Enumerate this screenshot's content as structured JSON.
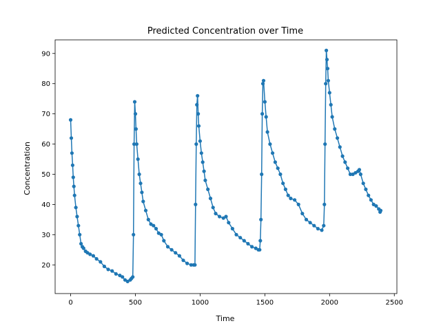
{
  "chart_data": {
    "type": "line",
    "title": "Predicted Concentration over Time",
    "xlabel": "Time",
    "ylabel": "Concentration",
    "xlim": [
      -120,
      2520
    ],
    "ylim": [
      10.5,
      94.5
    ],
    "xticks": [
      0,
      500,
      1000,
      1500,
      2000,
      2500
    ],
    "yticks": [
      20,
      30,
      40,
      50,
      60,
      70,
      80,
      90
    ],
    "grid": false,
    "legend": "none",
    "color": "#1f77b4",
    "marker": "circle",
    "series": [
      {
        "x": [
          0,
          5,
          10,
          15,
          20,
          25,
          30,
          40,
          50,
          60,
          70,
          80,
          90,
          100,
          115,
          130,
          150,
          175,
          200,
          230,
          260,
          290,
          320,
          350,
          380,
          400,
          420,
          440,
          460,
          470,
          480,
          485,
          490,
          495,
          500,
          505,
          510,
          520,
          530,
          540,
          550,
          560,
          580,
          600,
          620,
          640,
          660,
          680,
          700,
          720,
          750,
          780,
          810,
          840,
          870,
          900,
          930,
          950,
          960,
          965,
          970,
          975,
          980,
          985,
          990,
          1000,
          1010,
          1020,
          1030,
          1040,
          1060,
          1080,
          1100,
          1120,
          1150,
          1180,
          1200,
          1220,
          1250,
          1280,
          1310,
          1340,
          1370,
          1400,
          1430,
          1450,
          1460,
          1465,
          1470,
          1475,
          1480,
          1485,
          1490,
          1500,
          1510,
          1520,
          1540,
          1560,
          1580,
          1600,
          1620,
          1640,
          1660,
          1680,
          1700,
          1730,
          1760,
          1790,
          1820,
          1850,
          1880,
          1910,
          1940,
          1955,
          1960,
          1965,
          1970,
          1975,
          1980,
          1985,
          1990,
          2000,
          2010,
          2020,
          2040,
          2060,
          2080,
          2100,
          2120,
          2140,
          2160,
          2180,
          2200,
          2220,
          2230,
          2240,
          2260,
          2280,
          2300,
          2320,
          2340,
          2360,
          2380,
          2390,
          2395
        ],
        "y": [
          68,
          62,
          57,
          53,
          49,
          46,
          43,
          39,
          36,
          33,
          30,
          27,
          26,
          25.5,
          24.5,
          24,
          23.5,
          23,
          22,
          21,
          19.5,
          18.5,
          18,
          17,
          16.5,
          16,
          15,
          14.5,
          15,
          15.5,
          16,
          30,
          60,
          74,
          70,
          65,
          60,
          55,
          50,
          47,
          44,
          41,
          38,
          35,
          33.5,
          33,
          32,
          30.5,
          30,
          28,
          26,
          25,
          24,
          23,
          21.5,
          20.5,
          20,
          20,
          20,
          40,
          60,
          73,
          76,
          70,
          66,
          61,
          57,
          54,
          51,
          48,
          45,
          42,
          39,
          37,
          36,
          35.5,
          36,
          34,
          32,
          30,
          29,
          28,
          27,
          26,
          25.5,
          25,
          25,
          28,
          35,
          50,
          70,
          80,
          81,
          74,
          69,
          64,
          60,
          57,
          54,
          52,
          50,
          47,
          45,
          43,
          42,
          41.5,
          40,
          37,
          35,
          34,
          33,
          32,
          31.5,
          33,
          40,
          60,
          80,
          91,
          88,
          85,
          81,
          77,
          73,
          69,
          65,
          62,
          59,
          56,
          54,
          52,
          50,
          50,
          50.5,
          51,
          51.5,
          50,
          47,
          45,
          43,
          41.5,
          40,
          39.5,
          38.5,
          37.5,
          38
        ]
      }
    ]
  }
}
